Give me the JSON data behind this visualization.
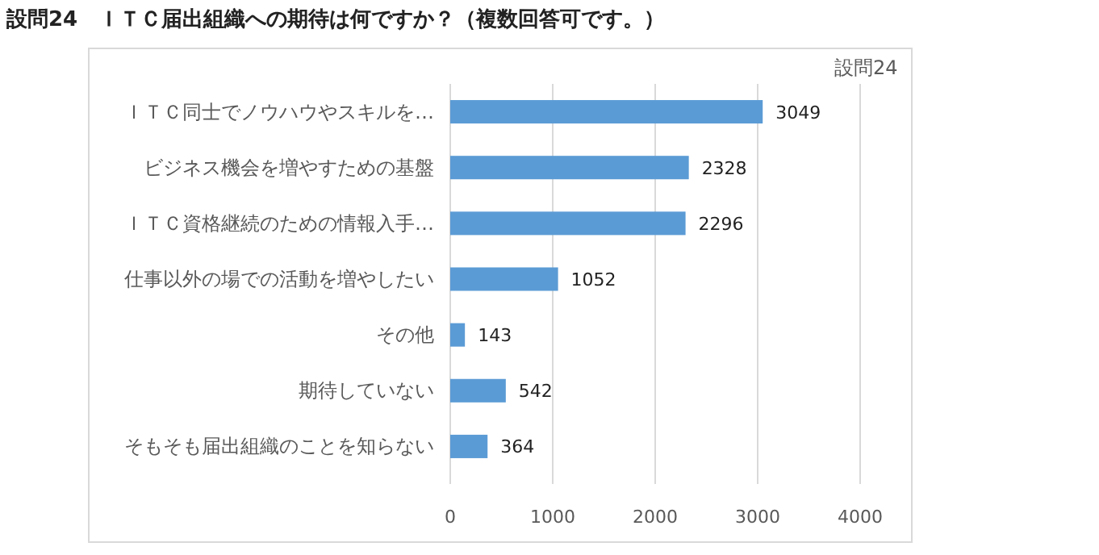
{
  "chart_data": {
    "type": "bar",
    "orientation": "horizontal",
    "title": "設問24　ＩＴＣ届出組織への期待は何ですか？（複数回答可です。）",
    "subtitle": "設問24",
    "categories": [
      "ＩＴＣ同士でノウハウやスキルを…",
      "ビジネス機会を増やすための基盤",
      "ＩＴＣ資格継続のための情報入手…",
      "仕事以外の場での活動を増やしたい",
      "その他",
      "期待していない",
      "そもそも届出組織のことを知らない"
    ],
    "values": [
      3049,
      2328,
      2296,
      1052,
      143,
      542,
      364
    ],
    "color": "#5b9bd5",
    "xlim": [
      0,
      4000
    ],
    "xticks": [
      0,
      1000,
      2000,
      3000,
      4000
    ],
    "grid": "x",
    "data_labels": true
  }
}
